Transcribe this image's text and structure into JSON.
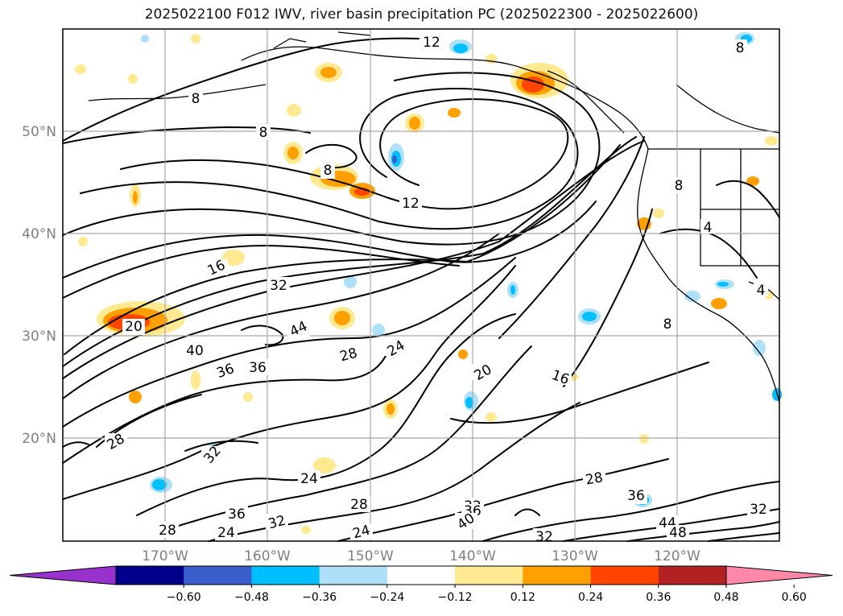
{
  "title": "2025022100 F012 IWV, river basin precipitation PC (2025022300 - 2025022600)",
  "lat_labels": [
    "20°N",
    "30°N",
    "40°N",
    "50°N"
  ],
  "lon_labels": [
    "170°W",
    "160°W",
    "150°W",
    "140°W",
    "130°W",
    "120°W"
  ],
  "contour_labels": [
    "12",
    "8",
    "8",
    "8",
    "12",
    "16",
    "32",
    "20",
    "44",
    "40",
    "36",
    "36",
    "28",
    "24",
    "20",
    "16",
    "28",
    "32",
    "24",
    "28",
    "36",
    "32",
    "28",
    "24",
    "24",
    "32",
    "36",
    "40",
    "28",
    "36",
    "44",
    "48",
    "32",
    "8",
    "8",
    "4",
    "4",
    "8",
    "32"
  ],
  "colorbar": {
    "colors": [
      "#9932cc",
      "#00008b",
      "#3a5fcd",
      "#00bfff",
      "#afe0fa",
      "#ffffff",
      "#ffe991",
      "#ffa000",
      "#ff4500",
      "#b22222",
      "#ff88a8"
    ],
    "tick_labels": [
      "−0.60",
      "−0.48",
      "−0.36",
      "−0.24",
      "−0.12",
      "0.12",
      "0.24",
      "0.36",
      "0.48",
      "0.60"
    ]
  },
  "colors": {
    "warm_patch": "#ffa000",
    "hot_patch": "#ff4500",
    "light_patch": "#ffe991",
    "cool_patch": "#00bfff",
    "pale_cool": "#afe0fa"
  }
}
